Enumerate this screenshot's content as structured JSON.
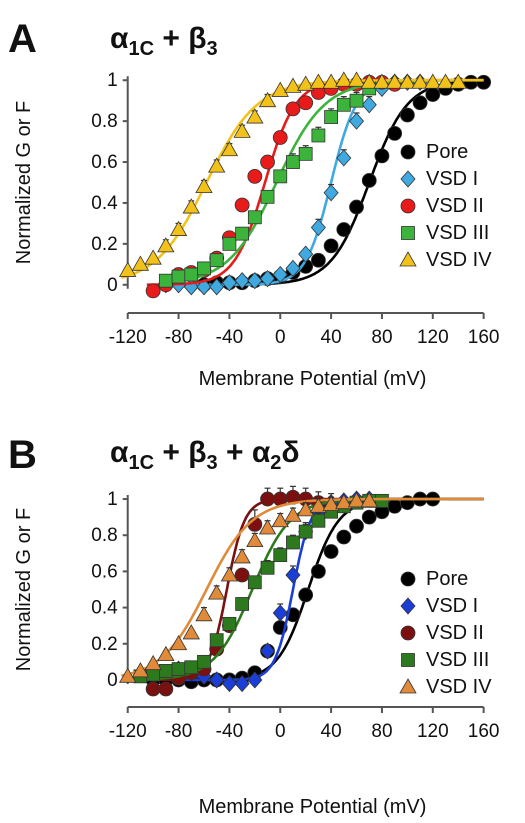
{
  "chart_data": [
    {
      "type": "line",
      "panel_label": "A",
      "title": "α1C + β3",
      "title_parts": {
        "base": "α",
        "sub": "1C",
        "mid": " + β",
        "sub2": "3"
      },
      "xlabel": "Membrane Potential (mV)",
      "ylabel": "Normalized G or F",
      "xlim": [
        -130,
        165
      ],
      "ylim": [
        -0.05,
        1.05
      ],
      "xticks": [
        -120,
        -80,
        -40,
        0,
        40,
        80,
        120,
        160
      ],
      "yticks": [
        0,
        0.2,
        0.4,
        0.6,
        0.8,
        1
      ],
      "ytick_labels": [
        "0",
        "0.2",
        "0.4",
        "0.6",
        "0.8",
        "1"
      ],
      "legend_position": "right",
      "series": [
        {
          "name": "Pore",
          "marker": "circle",
          "color": "#000000",
          "fit": {
            "vhalf": 70,
            "k": 15
          },
          "x": [
            -60,
            -50,
            -40,
            -30,
            -20,
            -10,
            0,
            10,
            20,
            30,
            40,
            50,
            60,
            70,
            80,
            90,
            100,
            110,
            120,
            130,
            140,
            150,
            160
          ],
          "y": [
            0.0,
            0.01,
            0.01,
            0.01,
            0.02,
            0.03,
            0.04,
            0.06,
            0.09,
            0.12,
            0.19,
            0.27,
            0.38,
            0.51,
            0.63,
            0.74,
            0.83,
            0.89,
            0.93,
            0.96,
            0.98,
            0.99,
            0.99
          ],
          "err_y": [
            null,
            null,
            null,
            null,
            null,
            null,
            null,
            null,
            null,
            null,
            null,
            null,
            null,
            null,
            null,
            0.02,
            0.02,
            0.02,
            0.02,
            0.02,
            null,
            null,
            null
          ]
        },
        {
          "name": "VSD I",
          "marker": "diamond",
          "color": "#3fa9e0",
          "fit": {
            "vhalf": 40,
            "k": 10
          },
          "x": [
            -90,
            -80,
            -70,
            -60,
            -50,
            -40,
            -30,
            -20,
            -10,
            0,
            10,
            20,
            30,
            40,
            50,
            60,
            70,
            80,
            90,
            100,
            110
          ],
          "y": [
            0.0,
            0.0,
            -0.01,
            -0.01,
            -0.01,
            0.01,
            0.02,
            0.02,
            0.03,
            0.05,
            0.08,
            0.15,
            0.28,
            0.45,
            0.62,
            0.8,
            0.88,
            0.96,
            0.99,
            0.99,
            0.99
          ],
          "err_y": [
            null,
            null,
            null,
            null,
            null,
            null,
            null,
            null,
            null,
            null,
            null,
            null,
            0.04,
            0.04,
            0.04,
            0.04,
            0.04,
            0.04,
            null,
            null,
            null
          ]
        },
        {
          "name": "VSD II",
          "marker": "circle",
          "color": "#e81a1a",
          "fit": {
            "vhalf": -12,
            "k": 12
          },
          "x": [
            -100,
            -90,
            -80,
            -70,
            -60,
            -50,
            -40,
            -30,
            -20,
            -10,
            0,
            10,
            20,
            30,
            40,
            50,
            60,
            70,
            80,
            90
          ],
          "y": [
            -0.03,
            0.0,
            0.05,
            0.06,
            0.07,
            0.13,
            0.23,
            0.39,
            0.53,
            0.6,
            0.72,
            0.86,
            0.89,
            0.94,
            0.96,
            0.98,
            0.98,
            0.99,
            0.99,
            0.98
          ],
          "err_y": [
            null,
            null,
            null,
            null,
            null,
            null,
            null,
            null,
            null,
            null,
            null,
            null,
            null,
            null,
            null,
            null,
            null,
            null,
            null,
            null
          ]
        },
        {
          "name": "VSD III",
          "marker": "square",
          "color": "#3cb43c",
          "fit": {
            "vhalf": -3,
            "k": 19
          },
          "x": [
            -90,
            -80,
            -70,
            -60,
            -50,
            -40,
            -30,
            -20,
            -10,
            0,
            10,
            20,
            30,
            40,
            50,
            60,
            70
          ],
          "y": [
            0.02,
            0.04,
            0.05,
            0.08,
            0.12,
            0.2,
            0.25,
            0.33,
            0.43,
            0.53,
            0.6,
            0.64,
            0.73,
            0.82,
            0.88,
            0.9,
            0.96
          ],
          "err_y": [
            null,
            null,
            null,
            null,
            null,
            null,
            null,
            null,
            null,
            null,
            0.04,
            0.04,
            0.04,
            0.04,
            0.04,
            0.04,
            null
          ]
        },
        {
          "name": "VSD IV",
          "marker": "triangle",
          "color": "#f2c21b",
          "fit": {
            "vhalf": -58,
            "k": 20
          },
          "x": [
            -120,
            -110,
            -100,
            -90,
            -80,
            -70,
            -60,
            -50,
            -40,
            -30,
            -20,
            -10,
            0,
            10,
            20,
            30,
            40,
            50,
            60,
            70,
            80,
            90,
            100,
            110,
            120,
            130,
            140
          ],
          "y": [
            0.07,
            0.1,
            0.13,
            0.19,
            0.27,
            0.38,
            0.48,
            0.58,
            0.66,
            0.75,
            0.82,
            0.9,
            0.95,
            0.97,
            0.98,
            0.99,
            0.99,
            1.0,
            1.0,
            0.99,
            0.99,
            0.99,
            0.99,
            0.99,
            0.99,
            0.99,
            0.99
          ],
          "err_y": [
            null,
            null,
            null,
            0.03,
            0.03,
            0.03,
            0.03,
            0.03,
            0.03,
            0.03,
            0.03,
            0.03,
            null,
            null,
            null,
            null,
            null,
            null,
            null,
            null,
            null,
            null,
            null,
            null,
            null,
            null,
            null
          ]
        }
      ]
    },
    {
      "type": "line",
      "panel_label": "B",
      "title": "α1C + β3 + α2δ",
      "title_parts": {
        "base": "α",
        "sub": "1C",
        "mid": " + β",
        "sub2": "3",
        "tail": " + α",
        "sub3": "2",
        "end": "δ"
      },
      "xlabel": "Membrane Potential (mV)",
      "ylabel": "Normalized G or F",
      "xlim": [
        -130,
        165
      ],
      "ylim": [
        -0.05,
        1.05
      ],
      "xticks": [
        -120,
        -80,
        -40,
        0,
        40,
        80,
        120,
        160
      ],
      "yticks": [
        0,
        0.2,
        0.4,
        0.6,
        0.8,
        1
      ],
      "ytick_labels": [
        "0",
        "0.2",
        "0.4",
        "0.6",
        "0.8",
        "1"
      ],
      "legend_position": "right",
      "series": [
        {
          "name": "Pore",
          "marker": "circle",
          "color": "#000000",
          "fit": {
            "vhalf": 22,
            "k": 12
          },
          "x": [
            -100,
            -90,
            -80,
            -70,
            -60,
            -50,
            -40,
            -30,
            -20,
            -10,
            0,
            10,
            20,
            30,
            40,
            50,
            60,
            70,
            80,
            90,
            100,
            110,
            120
          ],
          "y": [
            0.0,
            0.0,
            0.0,
            -0.01,
            0.0,
            0.0,
            0.0,
            0.01,
            0.04,
            0.16,
            0.29,
            0.36,
            0.47,
            0.6,
            0.71,
            0.79,
            0.85,
            0.9,
            0.93,
            0.96,
            0.98,
            1.0,
            1.0
          ],
          "err_y": [
            null,
            null,
            null,
            null,
            null,
            null,
            null,
            null,
            null,
            null,
            null,
            null,
            null,
            null,
            null,
            null,
            null,
            null,
            null,
            null,
            null,
            null,
            null
          ]
        },
        {
          "name": "VSD I",
          "marker": "diamond",
          "color": "#1b3fd6",
          "fit": {
            "vhalf": 10,
            "k": 7
          },
          "x": [
            -80,
            -70,
            -60,
            -50,
            -40,
            -30,
            -20,
            -10,
            0,
            10,
            20,
            30,
            40,
            50,
            60,
            70
          ],
          "y": [
            0.06,
            0.04,
            0.02,
            0.0,
            -0.02,
            -0.02,
            0.0,
            0.16,
            0.37,
            0.58,
            0.82,
            0.92,
            0.98,
            0.99,
            1.0,
            1.0
          ],
          "err_y": [
            null,
            null,
            null,
            null,
            null,
            null,
            null,
            null,
            0.05,
            0.05,
            0.05,
            0.05,
            0.05,
            null,
            null,
            null
          ]
        },
        {
          "name": "VSD II",
          "marker": "circle",
          "color": "#7a1010",
          "fit": {
            "vhalf": -42,
            "k": 7
          },
          "x": [
            -100,
            -90,
            -80,
            -70,
            -60,
            -50,
            -40,
            -30,
            -20,
            -10,
            0,
            10,
            20,
            30
          ],
          "y": [
            -0.05,
            -0.05,
            0.01,
            0.04,
            0.06,
            0.17,
            0.3,
            0.58,
            0.86,
            1.0,
            1.0,
            1.01,
            1.0,
            0.98
          ],
          "err_y": [
            null,
            null,
            null,
            null,
            null,
            null,
            null,
            null,
            0.08,
            0.06,
            0.06,
            0.06,
            0.06,
            0.06
          ]
        },
        {
          "name": "VSD III",
          "marker": "square",
          "color": "#2d7a1e",
          "fit": {
            "vhalf": -22,
            "k": 15
          },
          "x": [
            -110,
            -100,
            -90,
            -80,
            -70,
            -60,
            -50,
            -40,
            -30,
            -20,
            -10,
            0,
            10,
            20,
            30,
            40,
            50,
            60,
            70,
            80
          ],
          "y": [
            0.02,
            0.03,
            0.05,
            0.06,
            0.07,
            0.1,
            0.22,
            0.31,
            0.42,
            0.54,
            0.62,
            0.69,
            0.76,
            0.82,
            0.88,
            0.93,
            0.96,
            0.98,
            0.99,
            0.99
          ],
          "err_y": [
            null,
            null,
            null,
            null,
            null,
            null,
            null,
            null,
            null,
            null,
            0.04,
            0.04,
            0.04,
            0.04,
            0.04,
            null,
            null,
            null,
            null,
            null
          ]
        },
        {
          "name": "VSD IV",
          "marker": "triangle",
          "color": "#e08a3a",
          "fit": {
            "vhalf": -58,
            "k": 18
          },
          "x": [
            -120,
            -110,
            -100,
            -90,
            -80,
            -70,
            -60,
            -50,
            -40,
            -30,
            -20,
            -10,
            0,
            10,
            20,
            30,
            40,
            50,
            60,
            70
          ],
          "y": [
            0.02,
            0.05,
            0.09,
            0.14,
            0.2,
            0.26,
            0.36,
            0.48,
            0.58,
            0.68,
            0.77,
            0.84,
            0.88,
            0.91,
            0.94,
            0.96,
            0.97,
            0.98,
            0.99,
            0.99
          ],
          "err_y": [
            null,
            null,
            null,
            null,
            null,
            null,
            0.04,
            0.04,
            0.04,
            0.04,
            0.04,
            0.04,
            0.04,
            0.04,
            0.04,
            0.04,
            0.04,
            null,
            null,
            null
          ]
        }
      ]
    }
  ]
}
